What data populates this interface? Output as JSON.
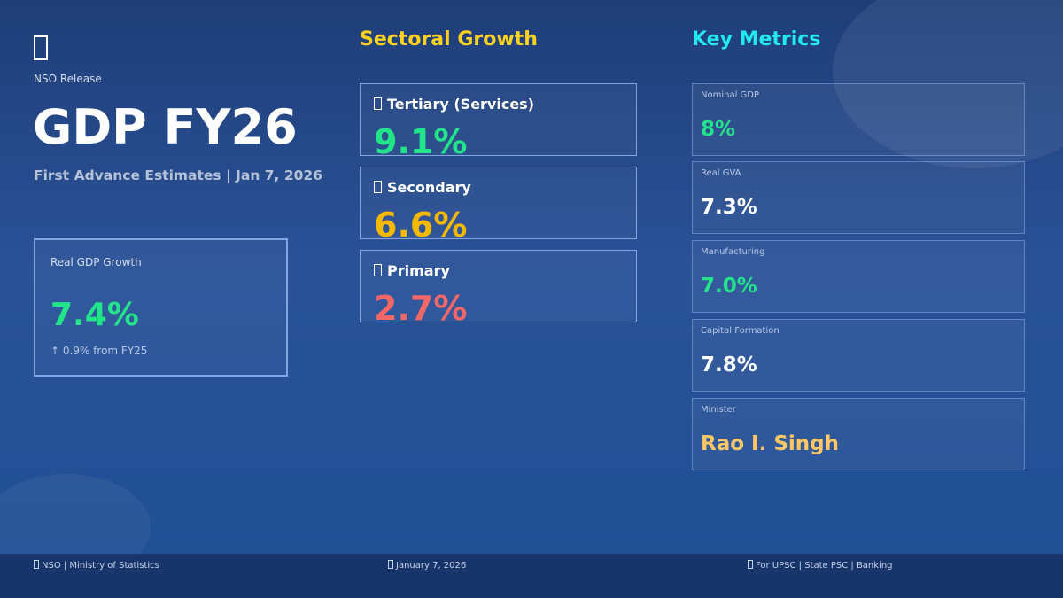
{
  "header": {
    "logo_icon": "unknown-glyph-icon",
    "source": "NSO Release",
    "title": "GDP FY26",
    "subtitle": "First Advance Estimates | Jan 7, 2026"
  },
  "headline": {
    "label": "Real GDP Growth",
    "value": "7.4%",
    "change": "↑ 0.9% from FY25",
    "value_color": "#22e58a"
  },
  "sectoral": {
    "title": "Sectoral Growth",
    "items": [
      {
        "label": "Tertiary (Services)",
        "value": "9.1%",
        "color": "#22e58a"
      },
      {
        "label": "Secondary",
        "value": "6.6%",
        "color": "#f5b800"
      },
      {
        "label": "Primary",
        "value": "2.7%",
        "color": "#f26868"
      }
    ]
  },
  "metrics": {
    "title": "Key Metrics",
    "items": [
      {
        "label": "Nominal GDP",
        "value": "8%",
        "color": "#22e58a"
      },
      {
        "label": "Real GVA",
        "value": "7.3%",
        "color": "#ffffff"
      },
      {
        "label": "Manufacturing",
        "value": "7.0%",
        "color": "#22e58a"
      },
      {
        "label": "Capital Formation",
        "value": "7.8%",
        "color": "#ffffff"
      },
      {
        "label": "Minister",
        "value": "Rao I. Singh",
        "color": "#ffc766"
      }
    ]
  },
  "footer": {
    "left": "NSO | Ministry of Statistics",
    "center": "January 7, 2026",
    "right": "For UPSC | State PSC | Banking"
  }
}
